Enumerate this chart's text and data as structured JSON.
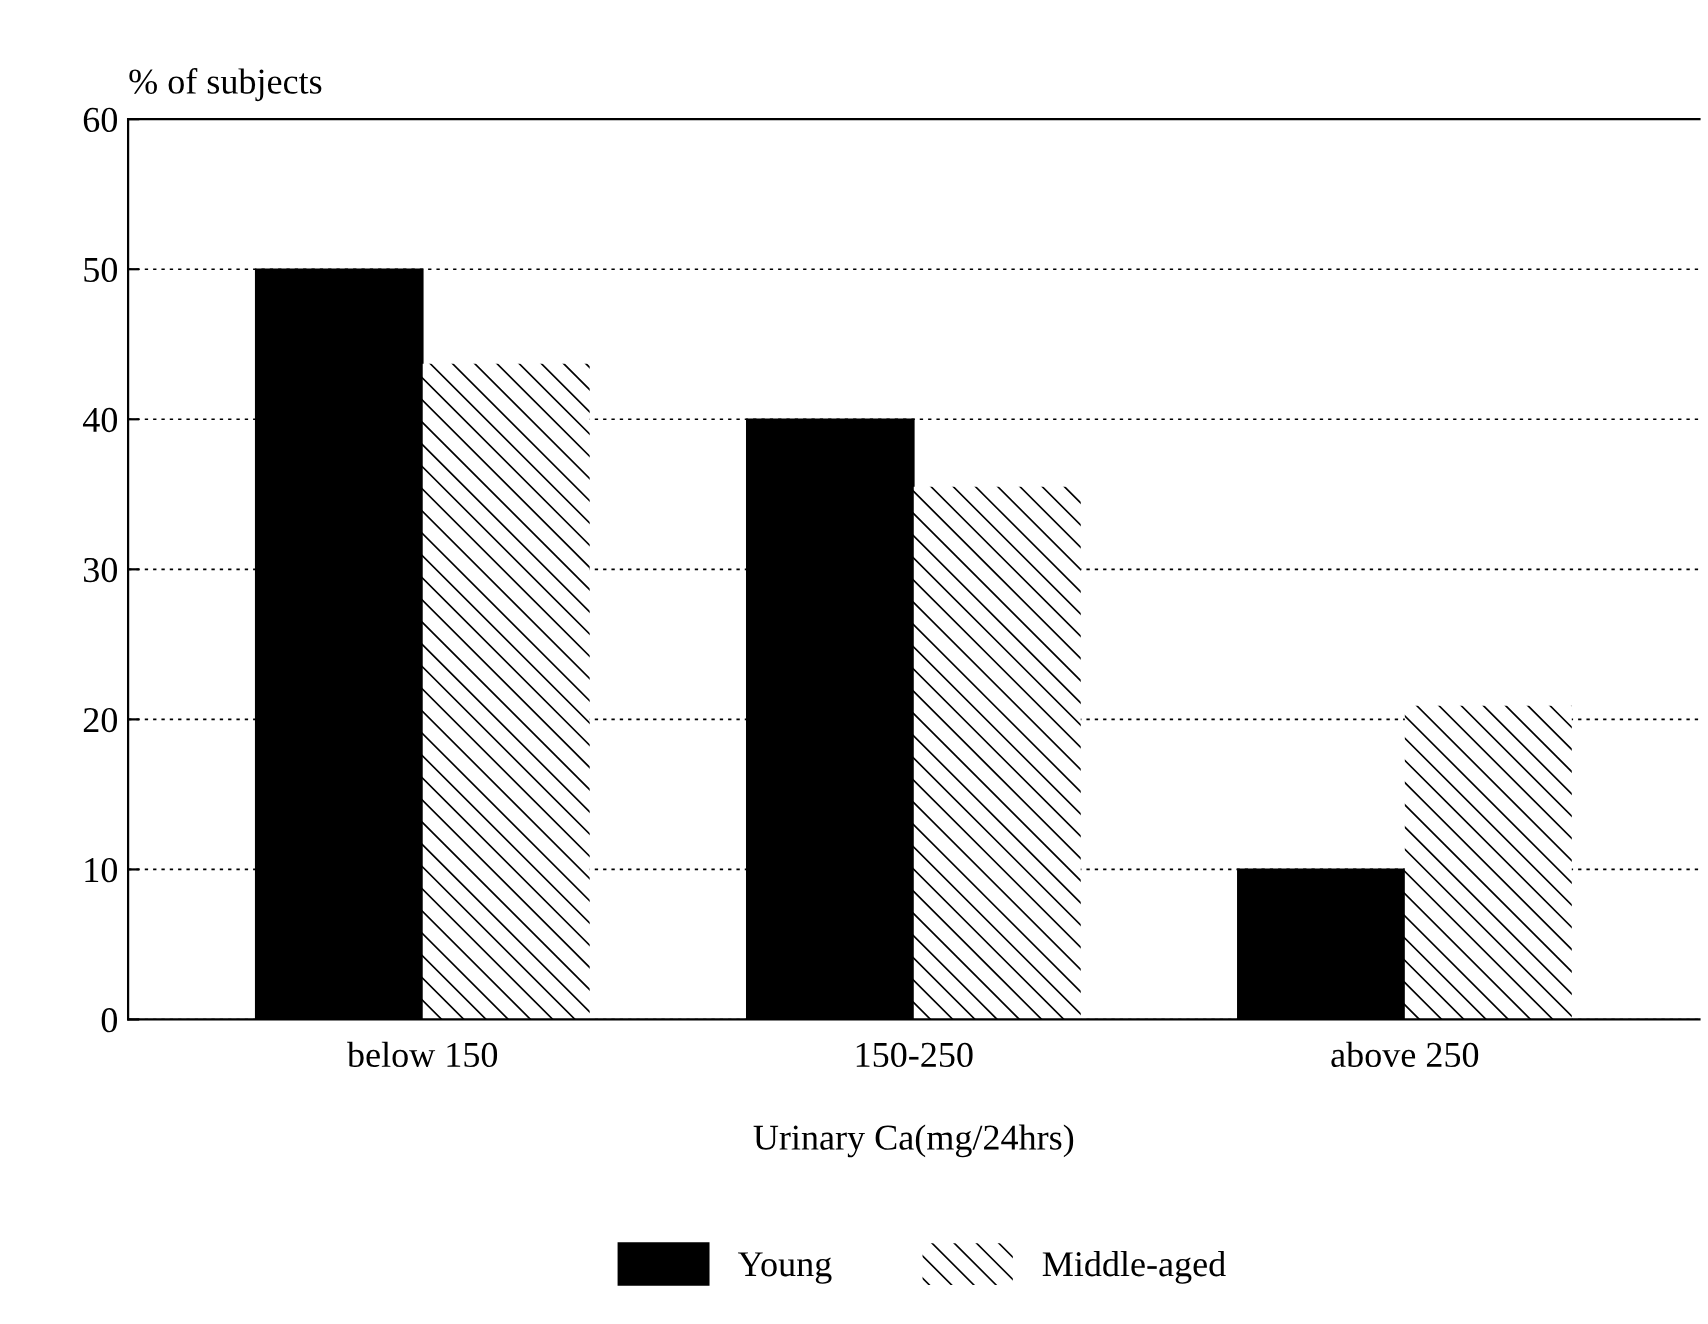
{
  "chart_data": {
    "type": "bar",
    "ylabel": "% of subjects",
    "xlabel": "Urinary Ca(mg/24hrs)",
    "categories": [
      "below 150",
      "150-250",
      "above 250"
    ],
    "series": [
      {
        "name": "Young",
        "color": "#000000",
        "values": [
          50,
          40,
          10
        ]
      },
      {
        "name": "Middle-aged",
        "color": "#ffffff",
        "values": [
          43.7,
          35.5,
          20.9
        ]
      }
    ],
    "ylim": [
      0,
      60
    ],
    "yticks": [
      0,
      10,
      20,
      30,
      40,
      50,
      60
    ],
    "grid": "y",
    "legend": "bottom"
  }
}
